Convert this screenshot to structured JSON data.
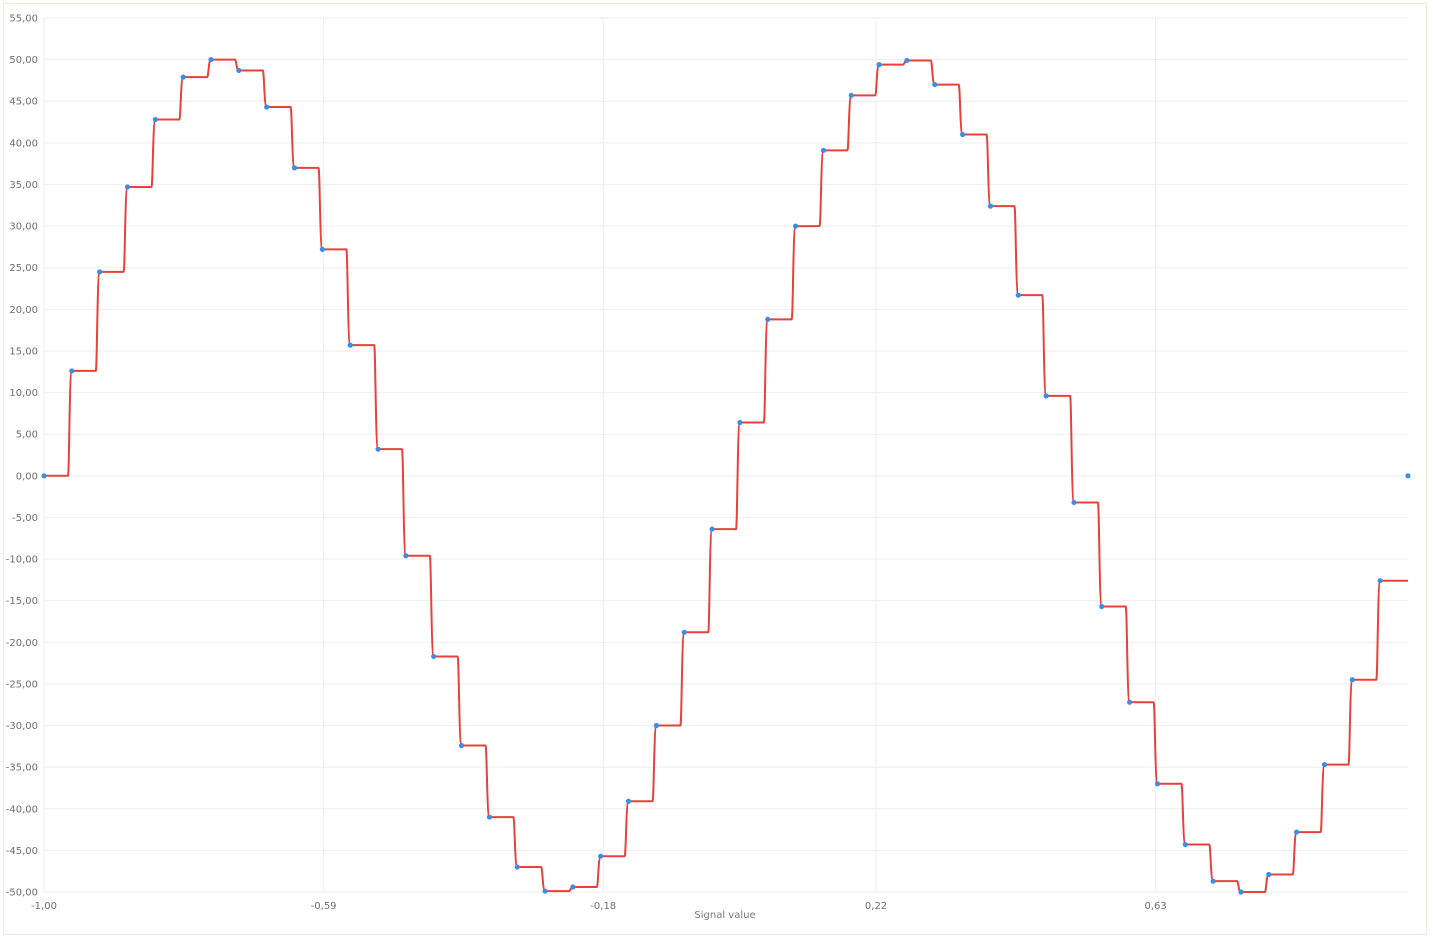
{
  "chart_data": {
    "type": "line",
    "xlabel": "Signal value",
    "ylabel": "",
    "xlim": [
      -1.0,
      1.0
    ],
    "ylim": [
      -50,
      55
    ],
    "grid": true,
    "legend": "none",
    "x_tick_values": [
      -1.0,
      -0.59,
      -0.18,
      0.22,
      0.63
    ],
    "x_tick_labels": [
      "-1,00",
      "-0,59",
      "-0,18",
      "0,22",
      "0,63"
    ],
    "y_tick_values": [
      55,
      50,
      45,
      40,
      35,
      30,
      25,
      20,
      15,
      10,
      5,
      0,
      -5,
      -10,
      -15,
      -20,
      -25,
      -30,
      -35,
      -40,
      -45,
      -50
    ],
    "y_tick_labels": [
      "55,00",
      "50,00",
      "45,00",
      "40,00",
      "35,00",
      "30,00",
      "25,00",
      "20,00",
      "15,00",
      "10,00",
      "5,00",
      "0,00",
      "-5,00",
      "-10,00",
      "-15,00",
      "-20,00",
      "-25,00",
      "-30,00",
      "-35,00",
      "-40,00",
      "-45,00",
      "-50,00"
    ],
    "series": [
      {
        "color": "#e8403a",
        "style": "step"
      },
      {
        "color": "#3a8ee6",
        "style": "points"
      }
    ],
    "x": [
      -1.0,
      -0.9592,
      -0.9184,
      -0.8776,
      -0.8367,
      -0.7959,
      -0.7551,
      -0.7143,
      -0.6735,
      -0.6327,
      -0.5918,
      -0.551,
      -0.5102,
      -0.4694,
      -0.4286,
      -0.3878,
      -0.3469,
      -0.3061,
      -0.2653,
      -0.2245,
      -0.1837,
      -0.1429,
      -0.102,
      -0.0612,
      -0.0204,
      0.0204,
      0.0612,
      0.102,
      0.1429,
      0.1837,
      0.2245,
      0.2653,
      0.3061,
      0.3469,
      0.3878,
      0.4286,
      0.4694,
      0.5102,
      0.551,
      0.5918,
      0.6327,
      0.6735,
      0.7143,
      0.7551,
      0.7959,
      0.8367,
      0.8776,
      0.9184,
      0.9592,
      1.0
    ],
    "y": [
      0.0,
      12.6,
      24.5,
      34.7,
      42.8,
      47.9,
      50.0,
      48.7,
      44.3,
      37.0,
      27.2,
      15.7,
      3.2,
      -9.6,
      -21.7,
      -32.4,
      -41.0,
      -47.0,
      -49.9,
      -49.4,
      -45.7,
      -39.1,
      -30.0,
      -18.8,
      -6.4,
      6.4,
      18.8,
      30.0,
      39.1,
      45.7,
      49.4,
      49.9,
      47.0,
      41.0,
      32.4,
      21.7,
      9.6,
      -3.2,
      -15.7,
      -27.2,
      -37.0,
      -44.3,
      -48.7,
      -50.0,
      -47.9,
      -42.8,
      -34.7,
      -24.5,
      -12.6,
      0.0
    ]
  }
}
